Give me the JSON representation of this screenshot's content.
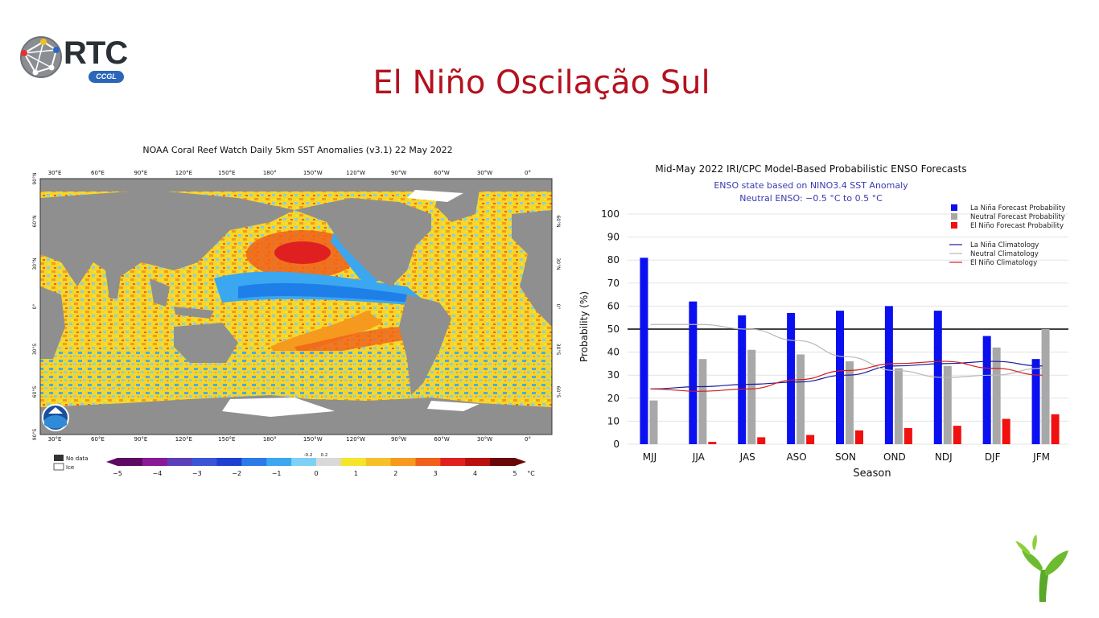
{
  "slide": {
    "title": "El Niño Oscilação Sul",
    "logo_text": "RTC",
    "logo_sub": "CCGL"
  },
  "sst_map": {
    "title": "NOAA Coral Reef Watch Daily 5km SST Anomalies  (v3.1)   22 May 2022",
    "lon_labels": [
      "30°E",
      "60°E",
      "90°E",
      "120°E",
      "150°E",
      "180°",
      "150°W",
      "120°W",
      "90°W",
      "60°W",
      "30°W",
      "0°"
    ],
    "lat_labels_left": [
      "90°N",
      "60°N",
      "30°N",
      "0°",
      "30°S",
      "60°S",
      "90°S"
    ],
    "lat_labels_right": [
      "60°N",
      "30°N",
      "0°",
      "30°S",
      "60°S"
    ],
    "legend_nodata": "No data",
    "legend_ice": "Ice",
    "colorbar_ticks": [
      "−5",
      "−4",
      "−3",
      "−2",
      "−1",
      "0",
      "1",
      "2",
      "3",
      "4",
      "5"
    ],
    "colorbar_inner_ticks": [
      "-0.2",
      "0.2"
    ],
    "colorbar_unit": "°C",
    "colorbar_colors": [
      "#5c0a62",
      "#8a1a96",
      "#5a3fb8",
      "#3a56d6",
      "#1f3fd0",
      "#2a7be8",
      "#3aa7f0",
      "#7fd0f5",
      "#d9d9d9",
      "#f5e52a",
      "#f5c02a",
      "#f59a1e",
      "#f0601a",
      "#e02020",
      "#b80f0f",
      "#6a0606"
    ]
  },
  "chart_data": {
    "type": "bar",
    "title": "Mid-May 2022 IRI/CPC Model-Based Probabilistic ENSO Forecasts",
    "subtitle_1": "ENSO state based on NINO3.4 SST Anomaly",
    "subtitle_2": "Neutral ENSO: −0.5 °C to 0.5 °C",
    "xlabel": "Season",
    "ylabel": "Probability (%)",
    "ylim": [
      0,
      100
    ],
    "yticks": [
      "0",
      "10",
      "20",
      "30",
      "40",
      "50",
      "60",
      "70",
      "80",
      "90",
      "100"
    ],
    "reference_line": 50,
    "categories": [
      "MJJ",
      "JJA",
      "JAS",
      "ASO",
      "SON",
      "OND",
      "NDJ",
      "DJF",
      "JFM"
    ],
    "series": [
      {
        "name": "La Niña Forecast Probability",
        "color": "#0a10f0",
        "values": [
          81,
          62,
          56,
          57,
          58,
          60,
          58,
          47,
          37
        ]
      },
      {
        "name": "Neutral Forecast Probability",
        "color": "#a8a8a8",
        "values": [
          19,
          37,
          41,
          39,
          36,
          33,
          34,
          42,
          50
        ]
      },
      {
        "name": "El Niño Forecast Probability",
        "color": "#f01010",
        "values": [
          0,
          1,
          3,
          4,
          6,
          7,
          8,
          11,
          13
        ]
      }
    ],
    "lines": [
      {
        "name": "La Niña Climatology",
        "color": "#1a1aa0",
        "values": [
          24,
          25,
          26,
          27,
          30,
          34,
          35,
          36,
          34
        ]
      },
      {
        "name": "Neutral Climatology",
        "color": "#b8b8b8",
        "values": [
          52,
          52,
          50,
          45,
          38,
          32,
          29,
          30,
          33
        ]
      },
      {
        "name": "El Niño Climatology",
        "color": "#d02020",
        "values": [
          24,
          23,
          24,
          28,
          32,
          35,
          36,
          33,
          30
        ]
      }
    ],
    "grid": true,
    "legend_position": "top-right"
  }
}
